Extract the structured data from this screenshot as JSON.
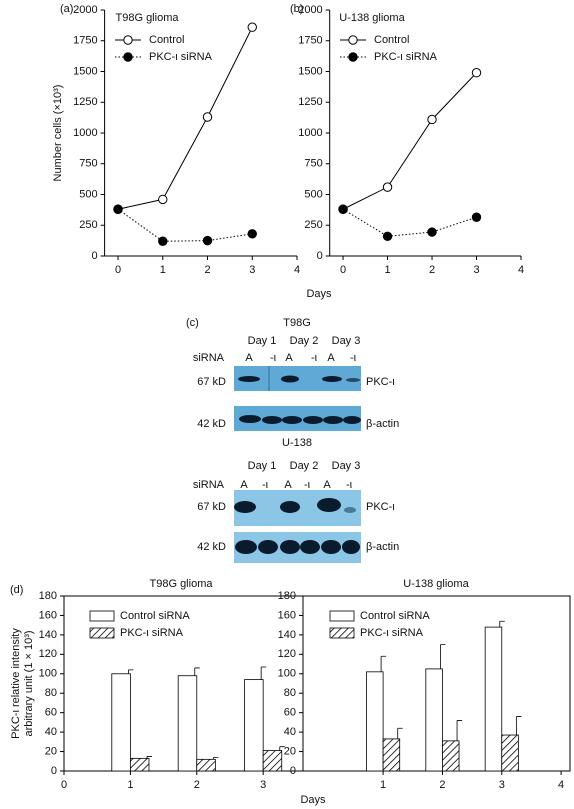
{
  "figure": {
    "panel_labels": [
      "(a)",
      "(b)",
      "(c)",
      "(d)"
    ]
  },
  "chart_data": [
    {
      "type": "line",
      "title": "T98G glioma",
      "ylabel": "Number cells (×10³)",
      "xlabel": "Days",
      "x": [
        0,
        1,
        2,
        3
      ],
      "xlim": [
        -0.3,
        4
      ],
      "xticks": [
        0,
        1,
        2,
        3,
        4
      ],
      "ylim": [
        0,
        2000
      ],
      "yticks": [
        0,
        250,
        500,
        750,
        1000,
        1250,
        1500,
        1750,
        2000
      ],
      "series": [
        {
          "name": "Control",
          "color": "#000000",
          "marker_fill": "#ffffff",
          "linestyle": "solid",
          "values": [
            380,
            460,
            1130,
            1860
          ]
        },
        {
          "name": "PKC-ι siRNA",
          "color": "#000000",
          "marker_fill": "#000000",
          "linestyle": "dotted",
          "values": [
            380,
            120,
            125,
            180
          ]
        }
      ]
    },
    {
      "type": "line",
      "title": "U-138 glioma",
      "x": [
        0,
        1,
        2,
        3
      ],
      "xlim": [
        -0.3,
        4
      ],
      "xticks": [
        0,
        1,
        2,
        3,
        4
      ],
      "ylim": [
        0,
        2000
      ],
      "yticks": [
        0,
        250,
        500,
        750,
        1000,
        1250,
        1500,
        1750,
        2000
      ],
      "series": [
        {
          "name": "Control",
          "color": "#000000",
          "marker_fill": "#ffffff",
          "linestyle": "solid",
          "values": [
            380,
            560,
            1110,
            1490
          ]
        },
        {
          "name": "PKC-ι siRNA",
          "color": "#000000",
          "marker_fill": "#000000",
          "linestyle": "dotted",
          "values": [
            380,
            160,
            195,
            315
          ]
        }
      ]
    },
    {
      "type": "bar",
      "title": "T98G glioma",
      "ylabel": [
        "PKC-ι relative intensity",
        "arbitrary unit (1 × 10³)"
      ],
      "xlabel": "Days",
      "x": [
        1,
        2,
        3
      ],
      "xlim": [
        0,
        3.6
      ],
      "xticks": [
        0,
        1,
        2,
        3
      ],
      "ylim": [
        0,
        180
      ],
      "yticks": [
        0,
        20,
        40,
        60,
        80,
        100,
        120,
        140,
        160,
        180
      ],
      "series": [
        {
          "name": "Control siRNA",
          "color": "#000000",
          "hatch": false,
          "values": [
            100,
            98,
            94
          ],
          "errors": [
            4,
            8,
            13
          ]
        },
        {
          "name": "PKC-ι siRNA",
          "color": "#000000",
          "hatch": true,
          "values": [
            13,
            12,
            21
          ],
          "errors": [
            2,
            2,
            4
          ]
        }
      ]
    },
    {
      "type": "bar",
      "title": "U-138 glioma",
      "x": [
        1,
        2,
        3
      ],
      "xlim": [
        -0.35,
        4.15
      ],
      "xticks": [
        1,
        2,
        3,
        4
      ],
      "ylim": [
        0,
        180
      ],
      "yticks": [
        0,
        20,
        40,
        60,
        80,
        100,
        120,
        140,
        160,
        180
      ],
      "series": [
        {
          "name": "Control siRNA",
          "color": "#000000",
          "hatch": false,
          "values": [
            102,
            105,
            148
          ],
          "errors": [
            16,
            25,
            6
          ]
        },
        {
          "name": "PKC-ι siRNA",
          "color": "#000000",
          "hatch": true,
          "values": [
            33,
            31,
            37
          ],
          "errors": [
            11,
            21,
            19
          ]
        }
      ]
    }
  ],
  "blots": [
    {
      "cell_line": "T98G",
      "days": [
        "Day 1",
        "Day 2",
        "Day 3"
      ],
      "row_label": "siRNA",
      "lanes": [
        "A",
        "-ι",
        "A",
        "-ι",
        "A",
        "-ι"
      ],
      "strips": [
        {
          "size": "67 kD",
          "protein": "PKC-ι"
        },
        {
          "size": "42 kD",
          "protein": "β-actin"
        }
      ]
    },
    {
      "cell_line": "U-138",
      "days": [
        "Day 1",
        "Day 2",
        "Day 3"
      ],
      "row_label": "siRNA",
      "lanes": [
        "A",
        "-ι",
        "A",
        "-ι",
        "A",
        "-ι"
      ],
      "strips": [
        {
          "size": "67 kD",
          "protein": "PKC-ι"
        },
        {
          "size": "42 kD",
          "protein": "β-actin"
        }
      ]
    }
  ]
}
